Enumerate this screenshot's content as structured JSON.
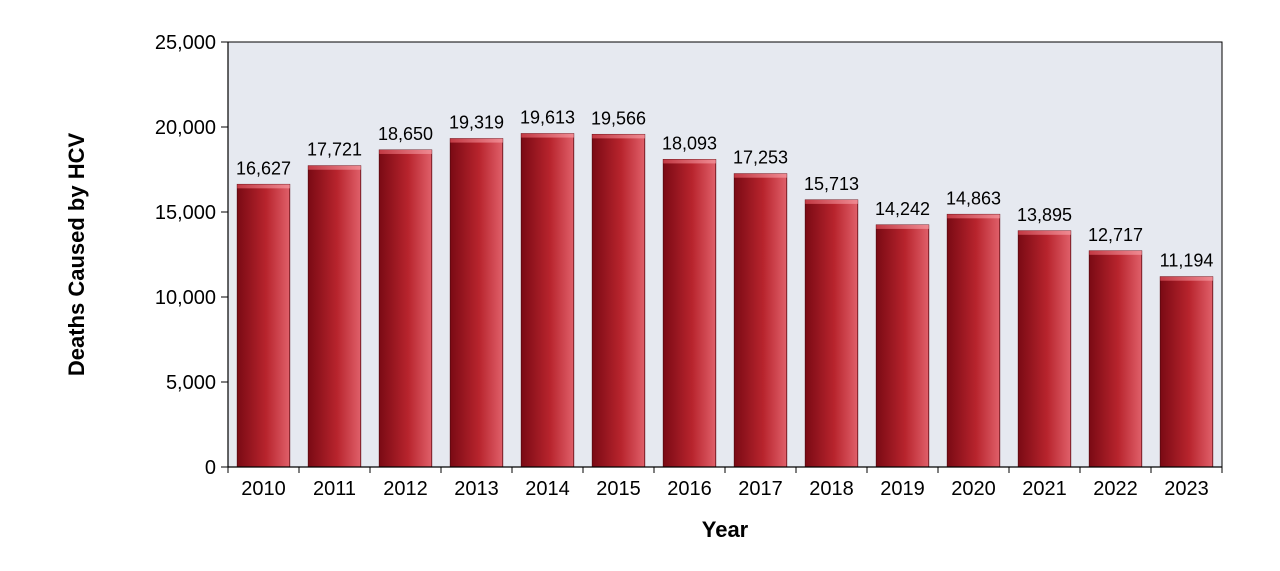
{
  "chart_data": {
    "type": "bar",
    "categories": [
      "2010",
      "2011",
      "2012",
      "2013",
      "2014",
      "2015",
      "2016",
      "2017",
      "2018",
      "2019",
      "2020",
      "2021",
      "2022",
      "2023"
    ],
    "values": [
      16627,
      17721,
      18650,
      19319,
      19613,
      19566,
      18093,
      17253,
      15713,
      14242,
      14863,
      13895,
      12717,
      11194
    ],
    "data_labels": [
      "16,627",
      "17,721",
      "18,650",
      "19,319",
      "19,613",
      "19,566",
      "18,093",
      "17,253",
      "15,713",
      "14,242",
      "14,863",
      "13,895",
      "12,717",
      "11,194"
    ],
    "title": "",
    "xlabel": "Year",
    "ylabel": "Deaths Caused by HCV",
    "ylim": [
      0,
      25000
    ],
    "yticks": [
      0,
      5000,
      10000,
      15000,
      20000,
      25000
    ],
    "ytick_labels": [
      "0",
      "5,000",
      "10,000",
      "15,000",
      "20,000",
      "25,000"
    ],
    "grid": false,
    "legend": "none",
    "colors": {
      "plot_background": "#e6e9f0",
      "bar_dark": "#7a0a14",
      "bar_mid": "#b8242d",
      "bar_light": "#e0606a",
      "axis": "#000000"
    }
  }
}
